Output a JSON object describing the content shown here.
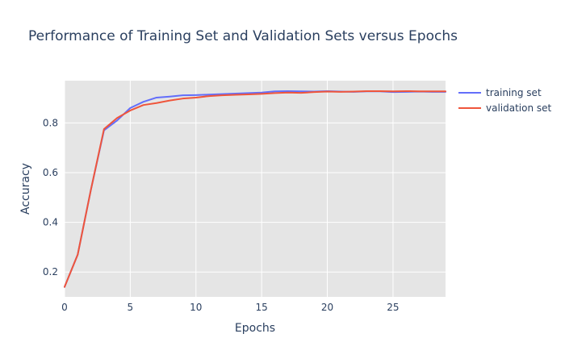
{
  "chart_data": {
    "type": "line",
    "title": "Performance of Training Set and Validation Sets versus Epochs",
    "xlabel": "Epochs",
    "ylabel": "Accuracy",
    "xlim": [
      0,
      29
    ],
    "ylim": [
      0.1,
      0.97
    ],
    "x_ticks": [
      0,
      5,
      10,
      15,
      20,
      25
    ],
    "x_tick_labels": [
      "0",
      "5",
      "10",
      "15",
      "20",
      "25"
    ],
    "y_ticks": [
      0.2,
      0.4,
      0.6,
      0.8
    ],
    "y_tick_labels": [
      "0.2",
      "0.4",
      "0.6",
      "0.8"
    ],
    "grid": true,
    "legend_position": "top-right outside",
    "x": [
      0,
      1,
      2,
      3,
      4,
      5,
      6,
      7,
      8,
      9,
      10,
      11,
      12,
      13,
      14,
      15,
      16,
      17,
      18,
      19,
      20,
      21,
      22,
      23,
      24,
      25,
      26,
      27,
      28,
      29
    ],
    "series": [
      {
        "name": "training set",
        "color": "#636efa",
        "values": [
          0.14,
          0.27,
          0.53,
          0.77,
          0.81,
          0.86,
          0.885,
          0.902,
          0.906,
          0.911,
          0.912,
          0.914,
          0.916,
          0.918,
          0.92,
          0.922,
          0.927,
          0.928,
          0.927,
          0.926,
          0.928,
          0.926,
          0.925,
          0.927,
          0.927,
          0.924,
          0.925,
          0.926,
          0.925,
          0.925
        ]
      },
      {
        "name": "validation set",
        "color": "#ef553b",
        "values": [
          0.14,
          0.27,
          0.53,
          0.775,
          0.82,
          0.85,
          0.872,
          0.88,
          0.89,
          0.898,
          0.902,
          0.908,
          0.911,
          0.913,
          0.915,
          0.917,
          0.92,
          0.922,
          0.921,
          0.924,
          0.926,
          0.925,
          0.926,
          0.928,
          0.928,
          0.927,
          0.928,
          0.927,
          0.927,
          0.927
        ]
      }
    ]
  }
}
